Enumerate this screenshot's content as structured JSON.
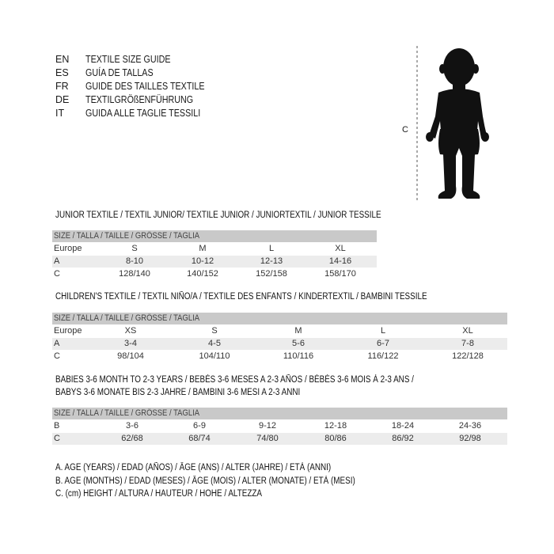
{
  "languages": [
    {
      "code": "EN",
      "text": "TEXTILE SIZE GUIDE"
    },
    {
      "code": "ES",
      "text": "GUÍA DE TALLAS"
    },
    {
      "code": "FR",
      "text": "GUIDE DES TAILLES TEXTILE"
    },
    {
      "code": "DE",
      "text": "TEXTILGRÖßENFÜHRUNG"
    },
    {
      "code": "IT",
      "text": "GUIDA ALLE TAGLIE TESSILI"
    }
  ],
  "figure": {
    "measure_label": "C"
  },
  "tables": [
    {
      "title": [
        "JUNIOR TEXTILE / TEXTIL JUNIOR/ TEXTILE JUNIOR / JUNIORTEXTIL / JUNIOR TESSILE"
      ],
      "header": "SIZE / TALLA / TAILLE / GRÖSSE / TAGLIA",
      "rows": [
        {
          "label": "Europe",
          "values": [
            "S",
            "M",
            "L",
            "XL"
          ]
        },
        {
          "label": "A",
          "values": [
            "8-10",
            "10-12",
            "12-13",
            "14-16"
          ]
        },
        {
          "label": "C",
          "values": [
            "128/140",
            "140/152",
            "152/158",
            "158/170"
          ]
        }
      ]
    },
    {
      "title": [
        "CHILDREN'S TEXTILE / TEXTIL NIÑO/A / TEXTILE DES ENFANTS / KINDERTEXTIL / BAMBINI TESSILE"
      ],
      "header": "SIZE / TALLA / TAILLE / GRÖSSE / TAGLIA",
      "rows": [
        {
          "label": "Europe",
          "values": [
            "XS",
            "S",
            "M",
            "L",
            "XL"
          ]
        },
        {
          "label": "A",
          "values": [
            "3-4",
            "4-5",
            "5-6",
            "6-7",
            "7-8"
          ]
        },
        {
          "label": "C",
          "values": [
            "98/104",
            "104/110",
            "110/116",
            "116/122",
            "122/128"
          ]
        }
      ]
    },
    {
      "title": [
        "BABIES 3-6 MONTH TO 2-3 YEARS / BEBÉS 3-6 MESES A 2-3 AÑOS / BÉBÉS 3-6 MOIS À 2-3 ANS /",
        "BABYS 3-6 MONATE BIS 2-3 JAHRE / BAMBINI 3-6 MESI A 2-3 ANNI"
      ],
      "header": "SIZE / TALLA / TAILLE / GRÖSSE / TAGLIA",
      "rows": [
        {
          "label": "B",
          "values": [
            "3-6",
            "6-9",
            "9-12",
            "12-18",
            "18-24",
            "24-36"
          ]
        },
        {
          "label": "C",
          "values": [
            "62/68",
            "68/74",
            "74/80",
            "80/86",
            "86/92",
            "92/98"
          ]
        }
      ]
    }
  ],
  "legend": [
    "A. AGE (YEARS) / EDAD (AÑOS) / ÂGE (ANS) / ALTER (JAHRE) / ETÀ (ANNI)",
    "B. AGE (MONTHS) / EDAD (MESES) / ÂGE (MOIS) / ALTER (MONATE) / ETÀ (MESI)",
    "C. (cm) HEIGHT / ALTURA / HAUTEUR / HÖHE / ALTEZZA"
  ]
}
